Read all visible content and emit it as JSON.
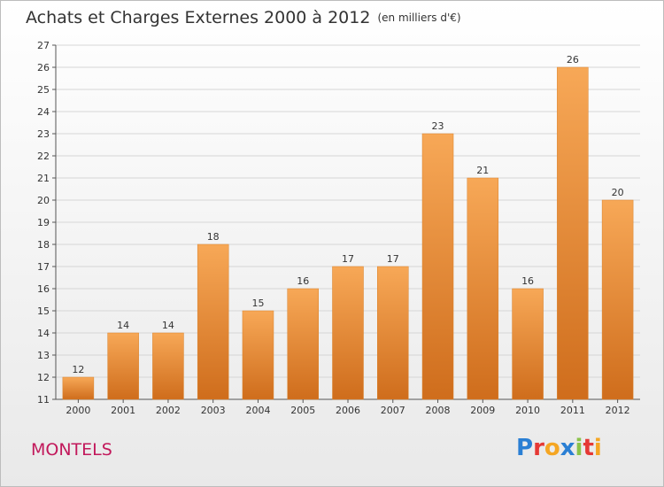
{
  "title": "Achats et Charges Externes 2000 à 2012",
  "unit": "(en milliers d'€)",
  "commune": "MONTELS",
  "brand": [
    {
      "ch": "P",
      "color": "#2a7fd4"
    },
    {
      "ch": "r",
      "color": "#e53935"
    },
    {
      "ch": "o",
      "color": "#f5a623"
    },
    {
      "ch": "x",
      "color": "#2a7fd4"
    },
    {
      "ch": "i",
      "color": "#8bc34a"
    },
    {
      "ch": "t",
      "color": "#e53935"
    },
    {
      "ch": "i",
      "color": "#f5a623"
    }
  ],
  "colors": {
    "bar_top": "#f7a857",
    "bar_bottom": "#cf6d1c",
    "label": "#333333"
  },
  "chart_data": {
    "type": "bar",
    "categories": [
      "2000",
      "2001",
      "2002",
      "2003",
      "2004",
      "2005",
      "2006",
      "2007",
      "2008",
      "2009",
      "2010",
      "2011",
      "2012"
    ],
    "values": [
      12,
      14,
      14,
      18,
      15,
      16,
      17,
      17,
      23,
      21,
      16,
      26,
      20
    ],
    "title": "Achats et Charges Externes 2000 à 2012",
    "subtitle": "(en milliers d'€)",
    "xlabel": "",
    "ylabel": "",
    "ylim": [
      11,
      27
    ],
    "yticks": [
      11,
      12,
      13,
      14,
      15,
      16,
      17,
      18,
      19,
      20,
      21,
      22,
      23,
      24,
      25,
      26,
      27
    ],
    "grid": true
  }
}
